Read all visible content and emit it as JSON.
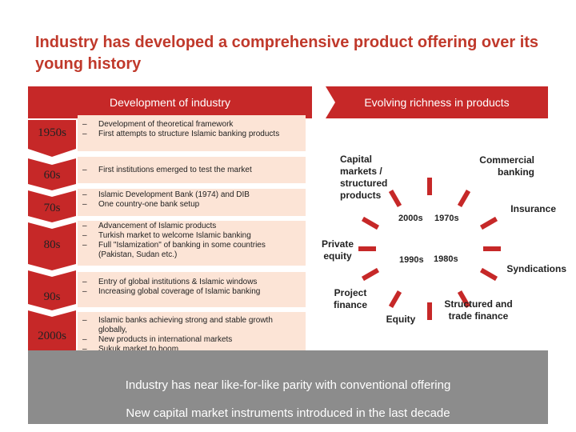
{
  "title": "Industry has developed a comprehensive product offering over its young history",
  "left_header": "Development of industry",
  "right_header": "Evolving richness in products",
  "timeline": [
    {
      "decade": "1950s",
      "bullets": [
        "Development of theoretical framework",
        "First attempts to structure Islamic banking products"
      ]
    },
    {
      "decade": "60s",
      "bullets": [
        "First institutions emerged to test the market"
      ]
    },
    {
      "decade": "70s",
      "bullets": [
        "Islamic Development Bank (1974) and DIB",
        "One country-one bank setup"
      ]
    },
    {
      "decade": "80s",
      "bullets": [
        "Advancement of Islamic products",
        "Turkish market to welcome Islamic banking",
        "Full \"Islamization\" of banking in some countries (Pakistan, Sudan etc.)"
      ]
    },
    {
      "decade": "90s",
      "bullets": [
        "Entry of global institutions & Islamic windows",
        "Increasing global coverage of Islamic banking"
      ]
    },
    {
      "decade": "2000s",
      "bullets": [
        "Islamic banks achieving strong and stable growth globally,",
        "New products in international markets",
        "Sukuk market to boom"
      ]
    }
  ],
  "dash": "–",
  "products": {
    "capital_markets": "Capital markets / structured products",
    "commercial_banking": "Commercial banking",
    "insurance": "Insurance",
    "syndications": "Syndications",
    "structured_trade": "Structured and trade finance",
    "equity": "Equity",
    "project_finance": "Project finance",
    "private_equity": "Private equity"
  },
  "years": {
    "y2000s": "2000s",
    "y1970s": "1970s",
    "y1990s": "1990s",
    "y1980s": "1980s"
  },
  "banner": {
    "line1": "Industry has near like-for-like parity with conventional offering",
    "line2": "New capital market instruments introduced in the last decade"
  },
  "colors": {
    "accent": "#c62828",
    "band": "#fce4d6",
    "banner": "#8c8c8c"
  }
}
